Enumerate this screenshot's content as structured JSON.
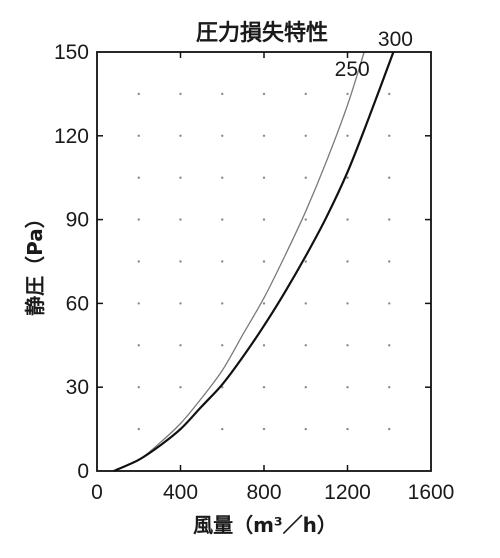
{
  "chart_data": {
    "type": "line",
    "title": "圧力損失特性",
    "xlabel": "風量（m³／h）",
    "ylabel": "静圧（Pa）",
    "xlim": [
      0,
      1600
    ],
    "ylim": [
      0,
      150
    ],
    "xticks": [
      0,
      400,
      800,
      1200,
      1600
    ],
    "yticks": [
      0,
      30,
      60,
      90,
      120,
      150
    ],
    "grid": "dotted",
    "series": [
      {
        "name": "250",
        "color": "#7a7a7a",
        "x": [
          80,
          200,
          300,
          400,
          500,
          600,
          700,
          800,
          900,
          1000,
          1100,
          1200,
          1280
        ],
        "y": [
          0,
          4,
          10,
          17,
          26,
          36,
          49,
          62,
          77,
          93,
          111,
          131,
          150
        ]
      },
      {
        "name": "300",
        "color": "#111111",
        "x": [
          80,
          200,
          300,
          400,
          500,
          600,
          700,
          800,
          900,
          1000,
          1100,
          1200,
          1300,
          1420
        ],
        "y": [
          0,
          4,
          9,
          15,
          23,
          31,
          41,
          52,
          64,
          77,
          91,
          107,
          126,
          150
        ]
      }
    ]
  }
}
